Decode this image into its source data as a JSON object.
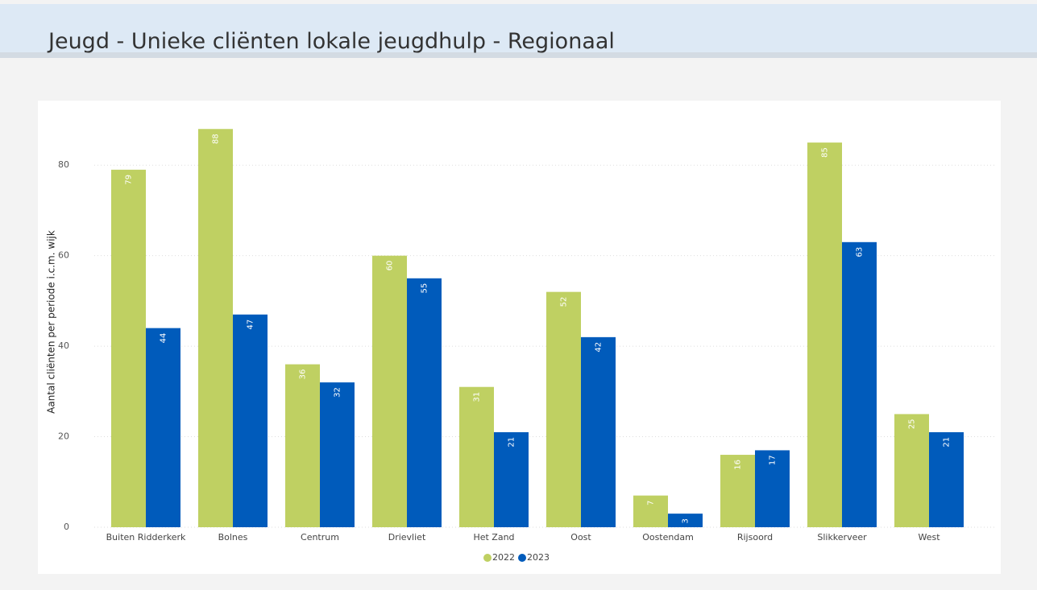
{
  "chart_data": {
    "type": "bar",
    "title": "Jeugd - Unieke cliënten lokale jeugdhulp - Regionaal",
    "y_label": "Aantal cliënten per periode i.c.m. wijk",
    "categories": [
      "Buiten Ridderkerk",
      "Bolnes",
      "Centrum",
      "Drievliet",
      "Het Zand",
      "Oost",
      "Oostendam",
      "Rijsoord",
      "Slikkerveer",
      "West"
    ],
    "series": [
      {
        "name": "2022",
        "color": "#bfd062",
        "values": [
          79,
          88,
          36,
          60,
          31,
          52,
          7,
          16,
          85,
          25
        ]
      },
      {
        "name": "2023",
        "color": "#005bbb",
        "values": [
          44,
          47,
          32,
          55,
          21,
          42,
          3,
          17,
          63,
          21
        ]
      }
    ],
    "ylim": [
      0,
      90
    ],
    "yticks": [
      0,
      20,
      40,
      60,
      80
    ],
    "grid": true,
    "legend": "bottom"
  }
}
